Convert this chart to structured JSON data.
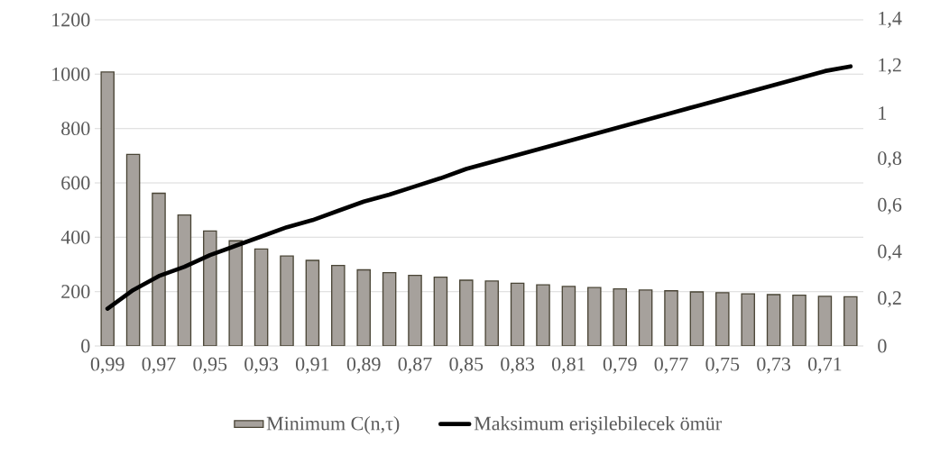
{
  "chart_data": {
    "type": "bar",
    "categories": [
      "0,99",
      null,
      "0,97",
      null,
      "0,95",
      null,
      "0,93",
      null,
      "0,91",
      null,
      "0,89",
      null,
      "0,87",
      null,
      "0,85",
      null,
      "0,83",
      null,
      "0,81",
      null,
      "0,79",
      null,
      "0,77",
      null,
      "0,75",
      null,
      "0,73",
      null,
      "0,71",
      null
    ],
    "series": [
      {
        "name": "Minimum C(n,τ)",
        "color": "#a6a19c",
        "values": [
          1008,
          705,
          562,
          482,
          423,
          387,
          357,
          331,
          315,
          296,
          280,
          270,
          260,
          253,
          242,
          239,
          231,
          225,
          219,
          215,
          210,
          206,
          203,
          199,
          196,
          192,
          189,
          187,
          183,
          181
        ]
      },
      {
        "name": "Maksimum erişilebilecek ömür",
        "type": "line",
        "axis": "y2",
        "color": "#000000",
        "values": [
          0.16,
          0.24,
          0.3,
          0.34,
          0.39,
          0.43,
          0.47,
          0.51,
          0.54,
          0.58,
          0.62,
          0.65,
          0.685,
          0.72,
          0.76,
          0.79,
          0.82,
          0.85,
          0.88,
          0.91,
          0.94,
          0.97,
          1.0,
          1.03,
          1.06,
          1.09,
          1.12,
          1.15,
          1.18,
          1.2
        ]
      }
    ],
    "ylim": [
      0,
      1200
    ],
    "yticks": [
      0,
      200,
      400,
      600,
      800,
      1000,
      1200
    ],
    "y2lim": [
      0,
      1.4
    ],
    "y2ticks": [
      0,
      {
        "value": 0.2,
        "label": "0,2"
      },
      {
        "value": 0.4,
        "label": "0,4"
      },
      {
        "value": 0.6,
        "label": "0,6"
      },
      {
        "value": 0.8,
        "label": "0,8"
      },
      1,
      {
        "value": 1.2,
        "label": "1,2"
      },
      {
        "value": 1.4,
        "label": "1,4"
      }
    ],
    "grid": "y",
    "legend": "bottom"
  }
}
